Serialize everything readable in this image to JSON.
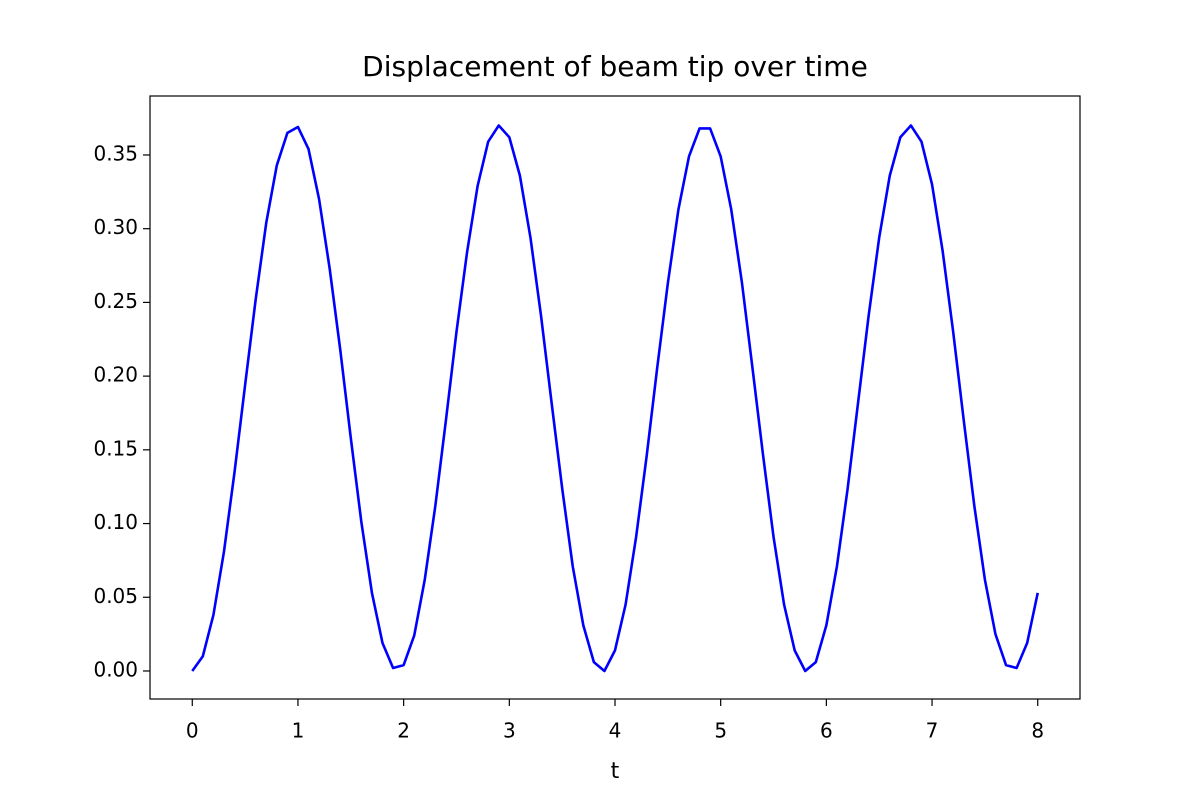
{
  "chart_data": {
    "type": "line",
    "title": "Displacement of beam tip over time",
    "x_label": "t",
    "x": [
      0,
      0.1,
      0.2,
      0.3,
      0.4,
      0.5,
      0.6,
      0.7,
      0.8,
      0.9,
      1,
      1.1,
      1.2,
      1.3,
      1.4,
      1.5,
      1.6,
      1.7,
      1.8,
      1.9,
      2,
      2.1,
      2.2,
      2.3,
      2.4,
      2.5,
      2.6,
      2.7,
      2.8,
      2.9,
      3,
      3.1,
      3.2,
      3.3,
      3.4,
      3.5,
      3.6,
      3.7,
      3.8,
      3.9,
      4,
      4.1,
      4.2,
      4.3,
      4.4,
      4.5,
      4.6,
      4.7,
      4.8,
      4.9,
      5,
      5.1,
      5.2,
      5.3,
      5.4,
      5.5,
      5.6,
      5.7,
      5.8,
      5.9,
      6,
      6.1,
      6.2,
      6.3,
      6.4,
      6.5,
      6.6,
      6.7,
      6.8,
      6.9,
      7,
      7.1,
      7.2,
      7.3,
      7.4,
      7.5,
      7.6,
      7.7,
      7.8,
      7.9,
      8
    ],
    "series": [
      {
        "color": "#0000ff",
        "values": [
          0,
          0.01,
          0.038,
          0.081,
          0.135,
          0.194,
          0.252,
          0.304,
          0.343,
          0.365,
          0.369,
          0.354,
          0.32,
          0.273,
          0.218,
          0.158,
          0.101,
          0.053,
          0.019,
          0.002,
          0.004,
          0.024,
          0.062,
          0.112,
          0.17,
          0.23,
          0.284,
          0.329,
          0.359,
          0.37,
          0.362,
          0.336,
          0.294,
          0.241,
          0.182,
          0.124,
          0.071,
          0.031,
          0.006,
          0.0,
          0.014,
          0.045,
          0.091,
          0.146,
          0.206,
          0.263,
          0.313,
          0.349,
          0.368,
          0.368,
          0.349,
          0.313,
          0.264,
          0.206,
          0.147,
          0.091,
          0.045,
          0.014,
          0.0,
          0.006,
          0.031,
          0.071,
          0.123,
          0.182,
          0.241,
          0.294,
          0.336,
          0.362,
          0.37,
          0.359,
          0.33,
          0.285,
          0.23,
          0.17,
          0.112,
          0.062,
          0.025,
          0.004,
          0.002,
          0.019,
          0.053
        ]
      }
    ],
    "xlim": [
      -0.4,
      8.4
    ],
    "xticks": [
      0,
      1,
      2,
      3,
      4,
      5,
      6,
      7,
      8
    ],
    "ylim": [
      -0.019,
      0.39
    ],
    "yticks": [
      {
        "value": 0,
        "label": "0.00"
      },
      {
        "value": 0.05,
        "label": "0.05"
      },
      {
        "value": 0.1,
        "label": "0.10"
      },
      {
        "value": 0.15,
        "label": "0.15"
      },
      {
        "value": 0.2,
        "label": "0.20"
      },
      {
        "value": 0.25,
        "label": "0.25"
      },
      {
        "value": 0.3,
        "label": "0.30"
      },
      {
        "value": 0.35,
        "label": "0.35"
      }
    ],
    "grid": false
  }
}
